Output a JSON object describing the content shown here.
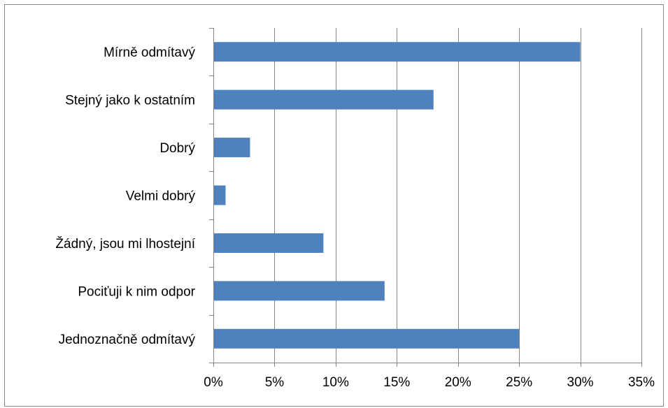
{
  "chart_data": {
    "type": "bar",
    "orientation": "horizontal",
    "categories": [
      "Mírně odmítavý",
      "Stejný jako k ostatním",
      "Dobrý",
      "Velmi dobrý",
      "Žádný, jsou mi lhostejní",
      "Pociťuji k nim odpor",
      "Jednoznačně odmítavý"
    ],
    "values": [
      0.3,
      0.18,
      0.03,
      0.01,
      0.09,
      0.14,
      0.25
    ],
    "title": "",
    "xlabel": "",
    "ylabel": "",
    "xlim": [
      0,
      0.35
    ],
    "x_ticks": [
      0,
      0.05,
      0.1,
      0.15,
      0.2,
      0.25,
      0.3,
      0.35
    ],
    "x_tick_labels": [
      "0%",
      "5%",
      "10%",
      "15%",
      "20%",
      "25%",
      "30%",
      "35%"
    ],
    "grid": true,
    "legend": "none",
    "colors": {
      "bar": "#4f81bd",
      "grid": "#868686",
      "frame": "#868686"
    }
  }
}
